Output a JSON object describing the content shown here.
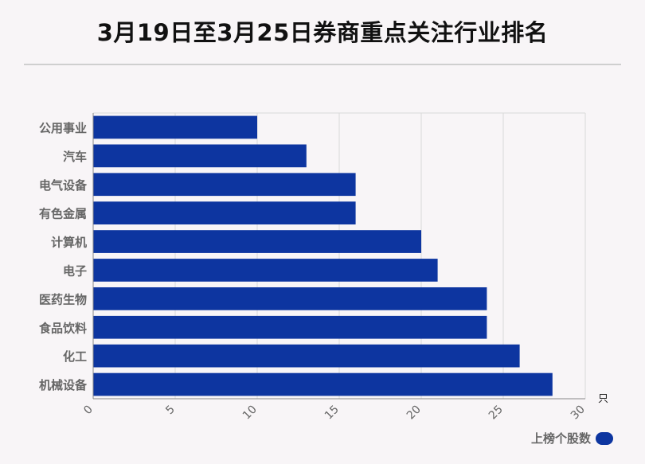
{
  "chart_data": {
    "type": "bar",
    "orientation": "horizontal",
    "title": "3月19日至3月25日券商重点关注行业排名",
    "categories": [
      "公用事业",
      "汽车",
      "电气设备",
      "有色金属",
      "计算机",
      "电子",
      "医药生物",
      "食品饮料",
      "化工",
      "机械设备"
    ],
    "series": [
      {
        "name": "上榜个股数",
        "values": [
          10,
          13,
          16,
          16,
          20,
          21,
          24,
          24,
          26,
          28
        ]
      }
    ],
    "xlim": [
      0,
      30
    ],
    "xticks": [
      0,
      5,
      10,
      15,
      20,
      25,
      30
    ],
    "xunit": "只",
    "grid": true,
    "legend_position": "bottom-right",
    "bar_color": "#0d35a0"
  }
}
